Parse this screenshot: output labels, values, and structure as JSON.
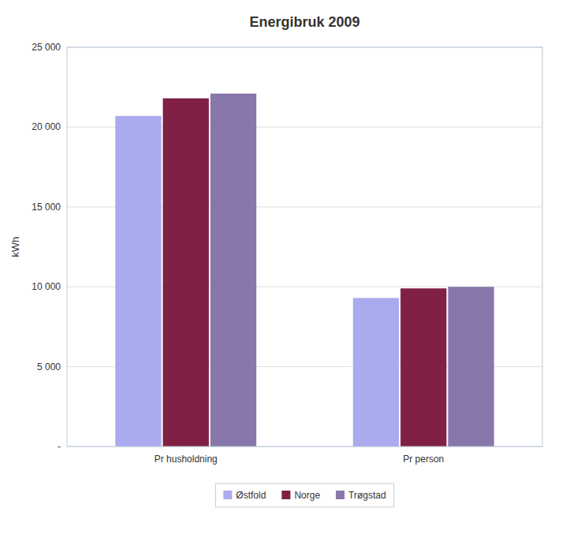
{
  "chart_data": {
    "type": "bar",
    "title": "Energibruk 2009",
    "categories": [
      "Pr husholdning",
      "Pr person"
    ],
    "series": [
      {
        "name": "Østfold",
        "values": [
          20700,
          9300
        ],
        "color": "#aaaaee"
      },
      {
        "name": "Norge",
        "values": [
          21800,
          9900
        ],
        "color": "#7f2044"
      },
      {
        "name": "Trøgstad",
        "values": [
          22100,
          10000
        ],
        "color": "#8877aa"
      }
    ],
    "ylabel": "kWh",
    "ylim": [
      0,
      25000
    ],
    "yticks": [
      {
        "value": 0,
        "label": "-"
      },
      {
        "value": 5000,
        "label": "5 000"
      },
      {
        "value": 10000,
        "label": "10 000"
      },
      {
        "value": 15000,
        "label": "15 000"
      },
      {
        "value": 20000,
        "label": "20 000"
      },
      {
        "value": 25000,
        "label": "25 000"
      }
    ],
    "grid": true,
    "legend": "bottom"
  }
}
